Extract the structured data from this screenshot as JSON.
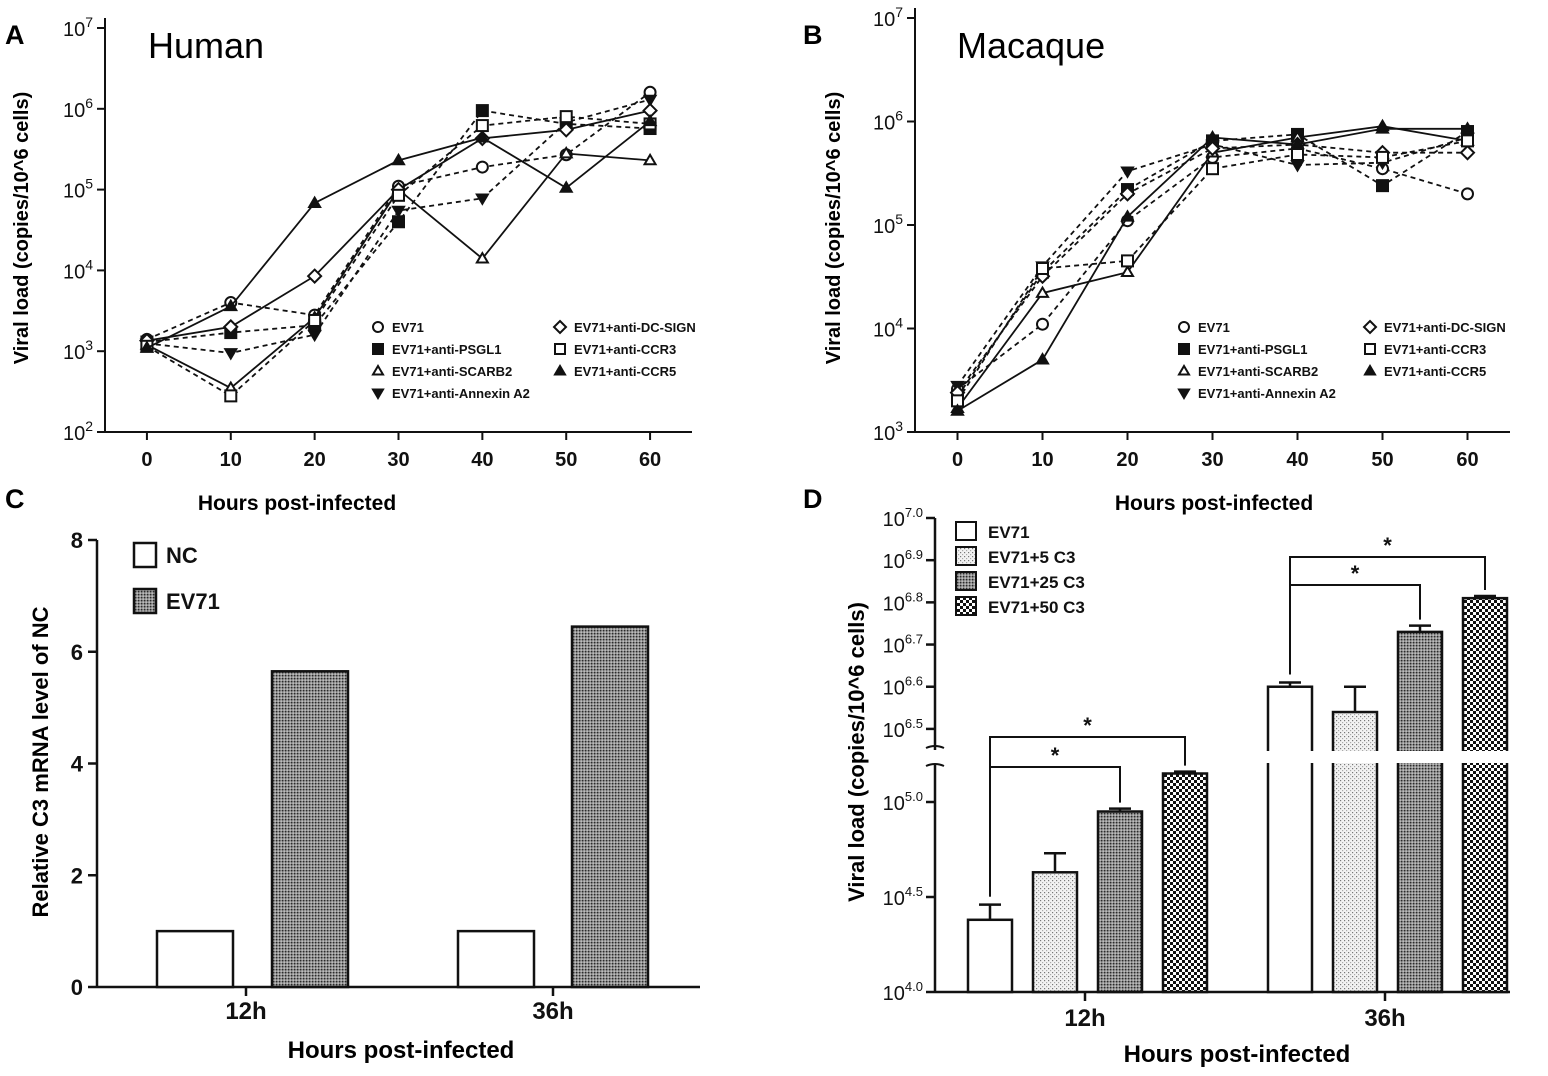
{
  "colors": {
    "ink": "#111111",
    "bar_fill": "#ffffff"
  },
  "chart_data": [
    {
      "panel": "A",
      "type": "line",
      "title": "Human",
      "xlabel": "Hours post-infected",
      "ylabel": "Viral load (copies/10^6 cells)",
      "y_scale": "log",
      "ylim": [
        100,
        10000000
      ],
      "xlim": [
        -5,
        65
      ],
      "x_ticks": [
        "0",
        "10",
        "20",
        "30",
        "40",
        "50",
        "60"
      ],
      "y_tick_base": "10",
      "y_tick_exponents": [
        "2",
        "3",
        "4",
        "5",
        "6",
        "7"
      ],
      "x": [
        0,
        10,
        20,
        30,
        40,
        50,
        60
      ],
      "series": [
        {
          "name": "EV71",
          "marker": "circle-open",
          "dash": "dashed",
          "values": [
            1400,
            4000,
            2800,
            110000,
            190000,
            270000,
            1600000
          ]
        },
        {
          "name": "EV71+anti-PSGL1",
          "marker": "square-filled",
          "dash": "dashed",
          "values": [
            1300,
            1700,
            2100,
            40000,
            950000,
            650000,
            570000
          ]
        },
        {
          "name": "EV71+anti-SCARB2",
          "marker": "triangle-open",
          "dash": "solid",
          "values": [
            1200,
            350,
            2600,
            100000,
            14000,
            280000,
            230000
          ]
        },
        {
          "name": "EV71+anti-Annexin A2",
          "marker": "triangle-down-filled",
          "dash": "dashed",
          "values": [
            1250,
            950,
            1600,
            55000,
            78000,
            680000,
            1300000
          ]
        },
        {
          "name": "EV71+anti-DC-SIGN",
          "marker": "diamond-open",
          "dash": "solid",
          "values": [
            1350,
            2000,
            8500,
            100000,
            430000,
            550000,
            950000
          ]
        },
        {
          "name": "EV71+anti-CCR3",
          "marker": "square-open",
          "dash": "dashed",
          "values": [
            1150,
            280,
            2400,
            85000,
            620000,
            800000,
            650000
          ]
        },
        {
          "name": "EV71+anti-CCR5",
          "marker": "triangle-filled",
          "dash": "solid",
          "values": [
            1100,
            3600,
            68000,
            230000,
            440000,
            105000,
            700000
          ]
        }
      ]
    },
    {
      "panel": "B",
      "type": "line",
      "title": "Macaque",
      "xlabel": "Hours post-infected",
      "ylabel": "Viral load (copies/10^6 cells)",
      "y_scale": "log",
      "ylim": [
        1000,
        10000000
      ],
      "xlim": [
        -5,
        65
      ],
      "x_ticks": [
        "0",
        "10",
        "20",
        "30",
        "40",
        "50",
        "60"
      ],
      "y_tick_base": "10",
      "y_tick_exponents": [
        "3",
        "4",
        "5",
        "6",
        "7"
      ],
      "x": [
        0,
        10,
        20,
        30,
        40,
        50,
        60
      ],
      "series": [
        {
          "name": "EV71",
          "marker": "circle-open",
          "dash": "dashed",
          "values": [
            2600,
            11000,
            110000,
            450000,
            550000,
            350000,
            200000
          ]
        },
        {
          "name": "EV71+anti-PSGL1",
          "marker": "square-filled",
          "dash": "dashed",
          "values": [
            2200,
            35000,
            220000,
            650000,
            750000,
            240000,
            800000
          ]
        },
        {
          "name": "EV71+anti-SCARB2",
          "marker": "triangle-open",
          "dash": "solid",
          "values": [
            1700,
            22000,
            35000,
            500000,
            700000,
            900000,
            650000
          ]
        },
        {
          "name": "EV71+anti-Annexin A2",
          "marker": "triangle-down-filled",
          "dash": "dashed",
          "values": [
            2800,
            40000,
            330000,
            600000,
            380000,
            400000,
            700000
          ]
        },
        {
          "name": "EV71+anti-DC-SIGN",
          "marker": "diamond-open",
          "dash": "dashed",
          "values": [
            2400,
            32000,
            200000,
            550000,
            600000,
            500000,
            500000
          ]
        },
        {
          "name": "EV71+anti-CCR3",
          "marker": "square-open",
          "dash": "dashed",
          "values": [
            2000,
            38000,
            45000,
            350000,
            480000,
            450000,
            650000
          ]
        },
        {
          "name": "EV71+anti-CCR5",
          "marker": "triangle-filled",
          "dash": "solid",
          "values": [
            1600,
            5000,
            120000,
            700000,
            600000,
            850000,
            850000
          ]
        }
      ]
    },
    {
      "panel": "C",
      "type": "bar",
      "xlabel": "Hours post-infected",
      "ylabel": "Relative C3 mRNA level of NC",
      "ylim": [
        0,
        8
      ],
      "y_ticks": [
        "0",
        "2",
        "4",
        "6",
        "8"
      ],
      "categories": [
        "12h",
        "36h"
      ],
      "series": [
        {
          "name": "NC",
          "pattern": "open",
          "values": [
            1.0,
            1.0
          ]
        },
        {
          "name": "EV71",
          "pattern": "fine-dots",
          "values": [
            5.65,
            6.45
          ]
        }
      ]
    },
    {
      "panel": "D",
      "type": "bar",
      "xlabel": "Hours post-infected",
      "ylabel": "Viral load (copies/10^6 cells)",
      "y_scale": "log10 exponent, broken axis",
      "ylim": [
        4.0,
        7.0
      ],
      "y_break": [
        5.2,
        6.45
      ],
      "y_tick_base": "10",
      "y_tick_exponents": [
        "4.0",
        "4.5",
        "5.0",
        "6.5",
        "6.6",
        "6.7",
        "6.8",
        "6.9",
        "7.0"
      ],
      "categories": [
        "12h",
        "36h"
      ],
      "series": [
        {
          "name": "EV71",
          "pattern": "open",
          "values": [
            4.38,
            6.6
          ],
          "errors": [
            0.08,
            0.01
          ]
        },
        {
          "name": "EV71+5 C3",
          "pattern": "sparse-dots",
          "values": [
            4.63,
            6.54
          ],
          "errors": [
            0.1,
            0.06
          ]
        },
        {
          "name": "EV71+25 C3",
          "pattern": "fine-dots",
          "values": [
            4.95,
            6.73
          ],
          "errors": [
            0.015,
            0.015
          ]
        },
        {
          "name": "EV71+50 C3",
          "pattern": "checker",
          "values": [
            5.15,
            6.81
          ],
          "errors": [
            0.01,
            0.005
          ]
        }
      ],
      "significance": [
        {
          "category": "12h",
          "from": "EV71",
          "to": "EV71+25 C3",
          "label": "*"
        },
        {
          "category": "12h",
          "from": "EV71",
          "to": "EV71+50 C3",
          "label": "*"
        },
        {
          "category": "36h",
          "from": "EV71",
          "to": "EV71+25 C3",
          "label": "*"
        },
        {
          "category": "36h",
          "from": "EV71",
          "to": "EV71+50 C3",
          "label": "*"
        }
      ]
    }
  ]
}
